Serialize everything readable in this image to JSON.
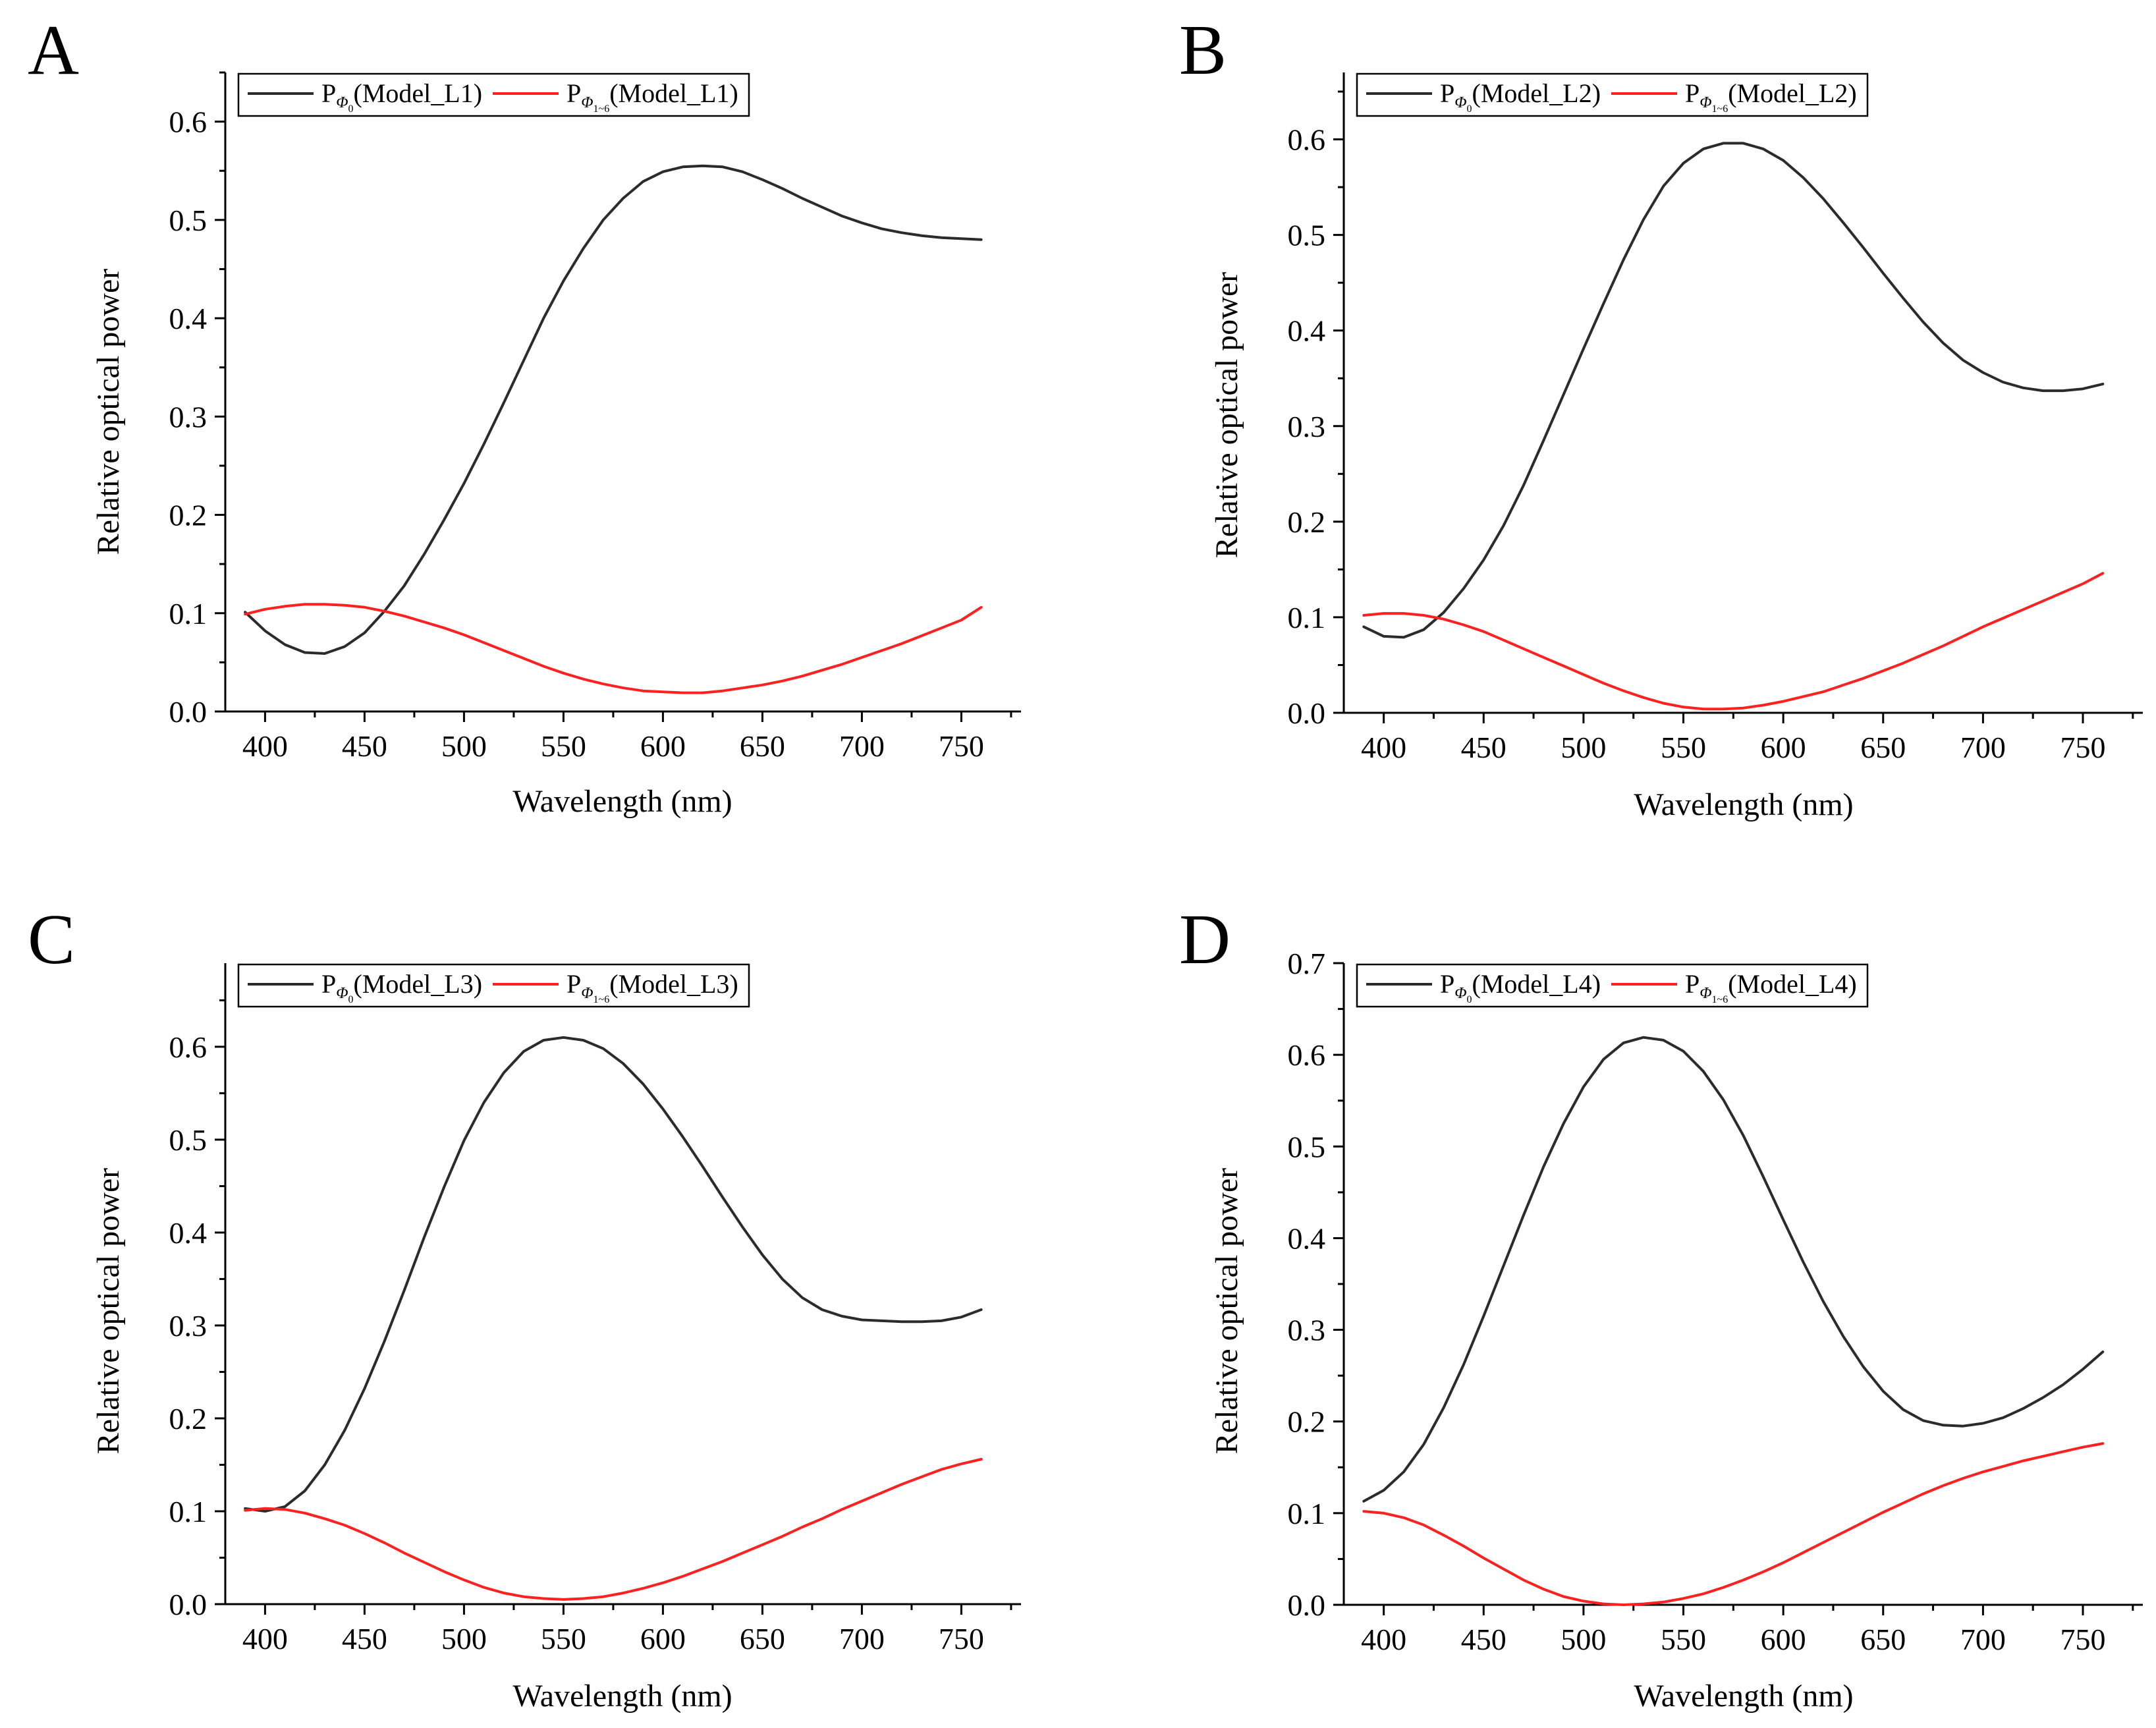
{
  "colors": {
    "series_0": "#2b2b2b",
    "series_1": "#ff2020"
  },
  "chart_data": [
    {
      "panel": "A",
      "type": "line",
      "xlabel": "Wavelength (nm)",
      "ylabel": "Relative optical power",
      "xlim": [
        380,
        780
      ],
      "ylim": [
        0,
        0.65
      ],
      "xticks": [
        400,
        450,
        500,
        550,
        600,
        650,
        700,
        750
      ],
      "yticks": [
        0.0,
        0.1,
        0.2,
        0.3,
        0.4,
        0.5,
        0.6
      ],
      "ytick_labels": [
        "0.0",
        "0.1",
        "0.2",
        "0.3",
        "0.4",
        "0.5",
        "0.6"
      ],
      "legend_placement": "top-left",
      "series": [
        {
          "name": "P",
          "sub": "Φ",
          "subsub": "0",
          "model": "(Model_L1)",
          "color": "#2b2b2b",
          "x": [
            390,
            400,
            410,
            420,
            430,
            440,
            450,
            460,
            470,
            480,
            490,
            500,
            510,
            520,
            530,
            540,
            550,
            560,
            570,
            580,
            590,
            600,
            610,
            620,
            630,
            640,
            650,
            660,
            670,
            680,
            690,
            700,
            710,
            720,
            730,
            740,
            750,
            760
          ],
          "y": [
            0.101,
            0.082,
            0.068,
            0.06,
            0.059,
            0.066,
            0.08,
            0.102,
            0.128,
            0.16,
            0.195,
            0.232,
            0.272,
            0.314,
            0.357,
            0.4,
            0.438,
            0.471,
            0.5,
            0.522,
            0.539,
            0.549,
            0.554,
            0.555,
            0.554,
            0.549,
            0.541,
            0.532,
            0.522,
            0.513,
            0.504,
            0.497,
            0.491,
            0.487,
            0.484,
            0.482,
            0.481,
            0.48
          ]
        },
        {
          "name": "P",
          "sub": "Φ",
          "subsub": "1~6",
          "model": "(Model_L1)",
          "color": "#ff2020",
          "x": [
            390,
            400,
            410,
            420,
            430,
            440,
            450,
            460,
            470,
            480,
            490,
            500,
            510,
            520,
            530,
            540,
            550,
            560,
            570,
            580,
            590,
            600,
            610,
            620,
            630,
            640,
            650,
            660,
            670,
            680,
            690,
            700,
            710,
            720,
            730,
            740,
            750,
            760
          ],
          "y": [
            0.099,
            0.104,
            0.107,
            0.109,
            0.109,
            0.108,
            0.106,
            0.102,
            0.097,
            0.091,
            0.085,
            0.078,
            0.07,
            0.062,
            0.054,
            0.046,
            0.039,
            0.033,
            0.028,
            0.024,
            0.021,
            0.02,
            0.019,
            0.019,
            0.021,
            0.024,
            0.027,
            0.031,
            0.036,
            0.042,
            0.048,
            0.055,
            0.062,
            0.069,
            0.077,
            0.085,
            0.093,
            0.106
          ]
        }
      ]
    },
    {
      "panel": "B",
      "type": "line",
      "xlabel": "Wavelength (nm)",
      "ylabel": "Relative optical power",
      "xlim": [
        380,
        780
      ],
      "ylim": [
        0,
        0.67
      ],
      "xticks": [
        400,
        450,
        500,
        550,
        600,
        650,
        700,
        750
      ],
      "yticks": [
        0.0,
        0.1,
        0.2,
        0.3,
        0.4,
        0.5,
        0.6
      ],
      "ytick_labels": [
        "0.0",
        "0.1",
        "0.2",
        "0.3",
        "0.4",
        "0.5",
        "0.6"
      ],
      "legend_placement": "top-left",
      "series": [
        {
          "name": "P",
          "sub": "Φ",
          "subsub": "0",
          "model": "(Model_L2)",
          "color": "#2b2b2b",
          "x": [
            390,
            400,
            410,
            420,
            430,
            440,
            450,
            460,
            470,
            480,
            490,
            500,
            510,
            520,
            530,
            540,
            550,
            560,
            570,
            580,
            590,
            600,
            610,
            620,
            630,
            640,
            650,
            660,
            670,
            680,
            690,
            700,
            710,
            720,
            730,
            740,
            750,
            760
          ],
          "y": [
            0.09,
            0.08,
            0.079,
            0.087,
            0.105,
            0.13,
            0.16,
            0.196,
            0.238,
            0.285,
            0.333,
            0.381,
            0.428,
            0.474,
            0.516,
            0.551,
            0.575,
            0.59,
            0.596,
            0.596,
            0.59,
            0.578,
            0.56,
            0.538,
            0.513,
            0.487,
            0.46,
            0.434,
            0.409,
            0.387,
            0.369,
            0.356,
            0.346,
            0.34,
            0.337,
            0.337,
            0.339,
            0.344
          ]
        },
        {
          "name": "P",
          "sub": "Φ",
          "subsub": "1~6",
          "model": "(Model_L2)",
          "color": "#ff2020",
          "x": [
            390,
            400,
            410,
            420,
            430,
            440,
            450,
            460,
            470,
            480,
            490,
            500,
            510,
            520,
            530,
            540,
            550,
            560,
            570,
            580,
            590,
            600,
            610,
            620,
            630,
            640,
            650,
            660,
            670,
            680,
            690,
            700,
            710,
            720,
            730,
            740,
            750,
            760
          ],
          "y": [
            0.102,
            0.104,
            0.104,
            0.102,
            0.098,
            0.092,
            0.085,
            0.076,
            0.067,
            0.058,
            0.049,
            0.04,
            0.031,
            0.023,
            0.016,
            0.01,
            0.006,
            0.004,
            0.004,
            0.005,
            0.008,
            0.012,
            0.017,
            0.022,
            0.029,
            0.036,
            0.044,
            0.052,
            0.061,
            0.07,
            0.08,
            0.09,
            0.099,
            0.108,
            0.117,
            0.126,
            0.135,
            0.146
          ]
        }
      ]
    },
    {
      "panel": "C",
      "type": "line",
      "xlabel": "Wavelength (nm)",
      "ylabel": "Relative optical power",
      "xlim": [
        380,
        780
      ],
      "ylim": [
        0,
        0.69
      ],
      "xticks": [
        400,
        450,
        500,
        550,
        600,
        650,
        700,
        750
      ],
      "yticks": [
        0.0,
        0.1,
        0.2,
        0.3,
        0.4,
        0.5,
        0.6
      ],
      "ytick_labels": [
        "0.0",
        "0.1",
        "0.2",
        "0.3",
        "0.4",
        "0.5",
        "0.6"
      ],
      "legend_placement": "top-left",
      "series": [
        {
          "name": "P",
          "sub": "Φ",
          "subsub": "0",
          "model": "(Model_L3)",
          "color": "#2b2b2b",
          "x": [
            390,
            400,
            410,
            420,
            430,
            440,
            450,
            460,
            470,
            480,
            490,
            500,
            510,
            520,
            530,
            540,
            550,
            560,
            570,
            580,
            590,
            600,
            610,
            620,
            630,
            640,
            650,
            660,
            670,
            680,
            690,
            700,
            710,
            720,
            730,
            740,
            750,
            760
          ],
          "y": [
            0.103,
            0.1,
            0.105,
            0.122,
            0.15,
            0.187,
            0.232,
            0.283,
            0.338,
            0.395,
            0.449,
            0.499,
            0.54,
            0.572,
            0.595,
            0.607,
            0.61,
            0.607,
            0.598,
            0.582,
            0.56,
            0.533,
            0.503,
            0.471,
            0.438,
            0.406,
            0.376,
            0.35,
            0.33,
            0.317,
            0.31,
            0.306,
            0.305,
            0.304,
            0.304,
            0.305,
            0.309,
            0.317
          ]
        },
        {
          "name": "P",
          "sub": "Φ",
          "subsub": "1~6",
          "model": "(Model_L3)",
          "color": "#ff2020",
          "x": [
            390,
            400,
            410,
            420,
            430,
            440,
            450,
            460,
            470,
            480,
            490,
            500,
            510,
            520,
            530,
            540,
            550,
            560,
            570,
            580,
            590,
            600,
            610,
            620,
            630,
            640,
            650,
            660,
            670,
            680,
            690,
            700,
            710,
            720,
            730,
            740,
            750,
            760
          ],
          "y": [
            0.101,
            0.103,
            0.102,
            0.098,
            0.092,
            0.085,
            0.076,
            0.066,
            0.055,
            0.045,
            0.035,
            0.026,
            0.018,
            0.012,
            0.008,
            0.006,
            0.005,
            0.006,
            0.008,
            0.012,
            0.017,
            0.023,
            0.03,
            0.038,
            0.046,
            0.055,
            0.064,
            0.073,
            0.083,
            0.092,
            0.102,
            0.111,
            0.12,
            0.129,
            0.137,
            0.145,
            0.151,
            0.156
          ]
        }
      ]
    },
    {
      "panel": "D",
      "type": "line",
      "xlabel": "Wavelength (nm)",
      "ylabel": "Relative optical power",
      "xlim": [
        380,
        780
      ],
      "ylim": [
        0,
        0.7
      ],
      "xticks": [
        400,
        450,
        500,
        550,
        600,
        650,
        700,
        750
      ],
      "yticks": [
        0.0,
        0.1,
        0.2,
        0.3,
        0.4,
        0.5,
        0.6,
        0.7
      ],
      "ytick_labels": [
        "0.0",
        "0.1",
        "0.2",
        "0.3",
        "0.4",
        "0.5",
        "0.6",
        "0.7"
      ],
      "legend_placement": "top-left",
      "series": [
        {
          "name": "P",
          "sub": "Φ",
          "subsub": "0",
          "model": "(Model_L4)",
          "color": "#2b2b2b",
          "x": [
            390,
            400,
            410,
            420,
            430,
            440,
            450,
            460,
            470,
            480,
            490,
            500,
            510,
            520,
            530,
            540,
            550,
            560,
            570,
            580,
            590,
            600,
            610,
            620,
            630,
            640,
            650,
            660,
            670,
            680,
            690,
            700,
            710,
            720,
            730,
            740,
            750,
            760
          ],
          "y": [
            0.113,
            0.125,
            0.145,
            0.175,
            0.215,
            0.262,
            0.315,
            0.37,
            0.425,
            0.478,
            0.525,
            0.565,
            0.595,
            0.613,
            0.619,
            0.616,
            0.604,
            0.582,
            0.551,
            0.512,
            0.467,
            0.42,
            0.374,
            0.331,
            0.293,
            0.26,
            0.233,
            0.213,
            0.201,
            0.196,
            0.195,
            0.198,
            0.204,
            0.214,
            0.226,
            0.24,
            0.257,
            0.276
          ]
        },
        {
          "name": "P",
          "sub": "Φ",
          "subsub": "1~6",
          "model": "(Model_L4)",
          "color": "#ff2020",
          "x": [
            390,
            400,
            410,
            420,
            430,
            440,
            450,
            460,
            470,
            480,
            490,
            500,
            510,
            520,
            530,
            540,
            550,
            560,
            570,
            580,
            590,
            600,
            610,
            620,
            630,
            640,
            650,
            660,
            670,
            680,
            690,
            700,
            710,
            720,
            730,
            740,
            750,
            760
          ],
          "y": [
            0.102,
            0.1,
            0.095,
            0.087,
            0.076,
            0.064,
            0.051,
            0.039,
            0.027,
            0.017,
            0.009,
            0.004,
            0.001,
            0.0,
            0.001,
            0.003,
            0.007,
            0.012,
            0.019,
            0.027,
            0.036,
            0.046,
            0.057,
            0.068,
            0.079,
            0.09,
            0.101,
            0.111,
            0.121,
            0.13,
            0.138,
            0.145,
            0.151,
            0.157,
            0.162,
            0.167,
            0.172,
            0.176
          ]
        }
      ]
    }
  ]
}
